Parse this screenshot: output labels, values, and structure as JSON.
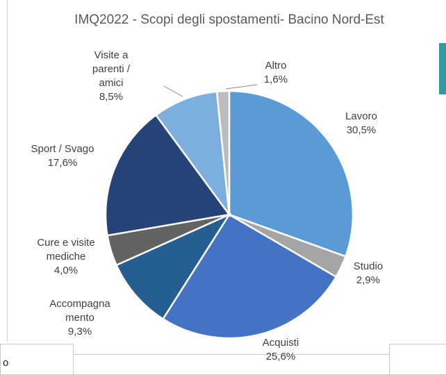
{
  "chart_data": {
    "type": "pie",
    "title": "IMQ2022 - Scopi degli spostamenti- Bacino Nord-Est",
    "categories": [
      "Lavoro",
      "Studio",
      "Acquisti",
      "Accompagnamento",
      "Cure e visite mediche",
      "Sport / Svago",
      "Visite a parenti / amici",
      "Altro"
    ],
    "values": [
      30.5,
      2.9,
      25.6,
      9.3,
      4.0,
      17.6,
      8.5,
      1.6
    ],
    "value_labels": [
      "30,5%",
      "2,9%",
      "25,6%",
      "9,3%",
      "4,0%",
      "17,6%",
      "8,5%",
      "1,6%"
    ],
    "colors": [
      "#5b9bd5",
      "#a5a5a5",
      "#4472c4",
      "#255e91",
      "#636363",
      "#264478",
      "#7cafdd",
      "#bcbcbc"
    ]
  },
  "fragment": "o"
}
